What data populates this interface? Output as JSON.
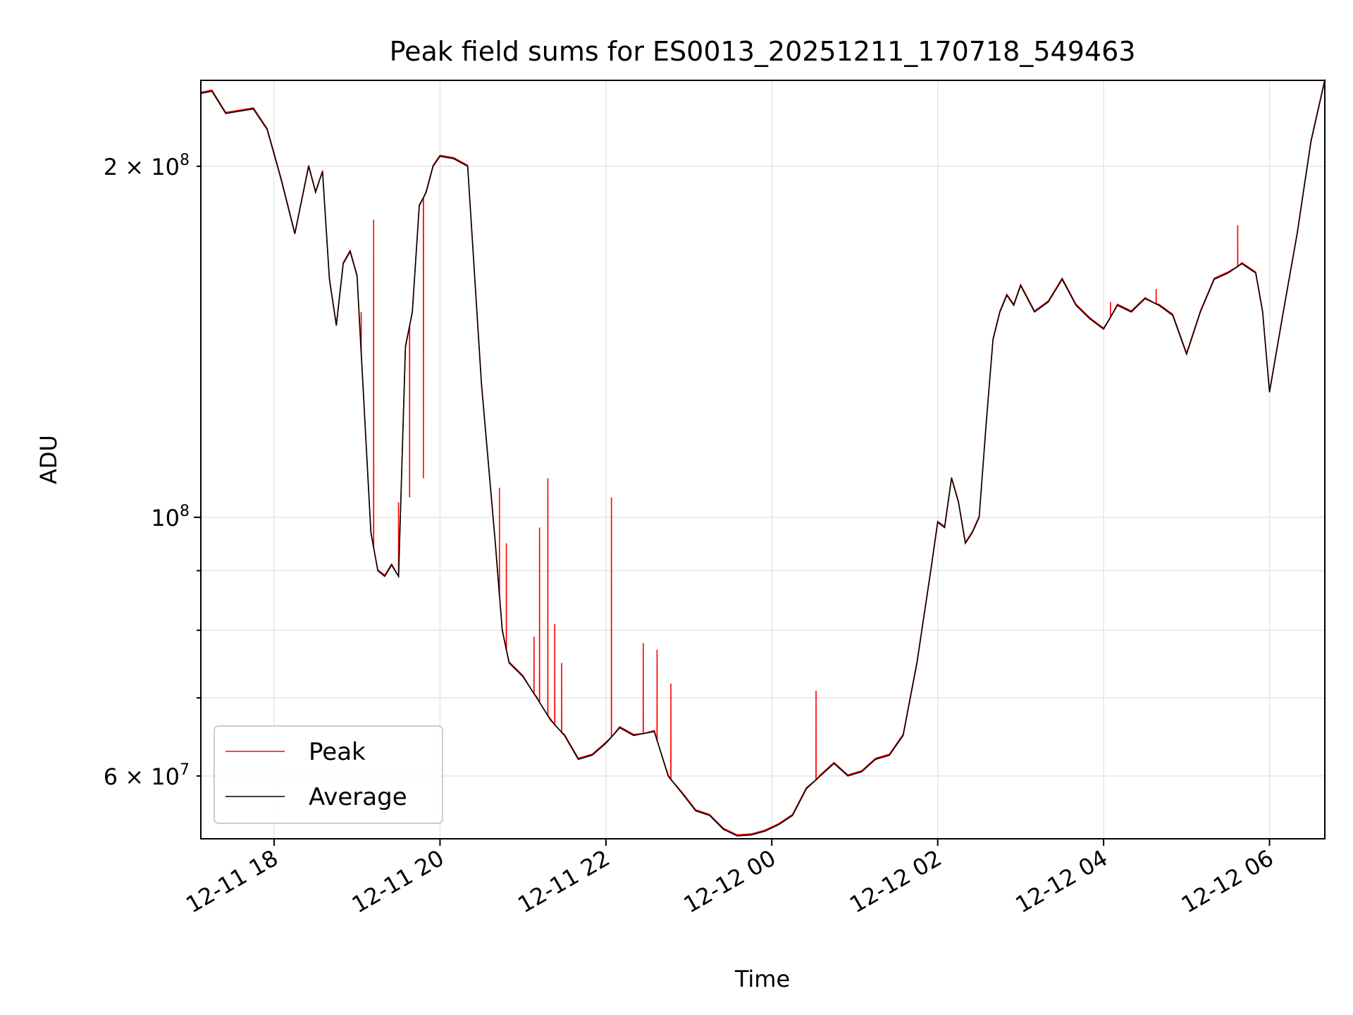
{
  "chart_data": {
    "type": "line",
    "title": "Peak field sums for ES0013_20251211_170718_549463",
    "xlabel": "Time",
    "ylabel": "ADU",
    "x_ticks": [
      "2025-12-11T18:00",
      "2025-12-11T20:00",
      "2025-12-11T22:00",
      "2025-12-12T00:00",
      "2025-12-12T02:00",
      "2025-12-12T04:00",
      "2025-12-12T06:00"
    ],
    "x_tick_labels": [
      "12-11 18",
      "12-11 20",
      "12-11 22",
      "12-12 00",
      "12-12 02",
      "12-12 04",
      "12-12 06"
    ],
    "xlim": [
      "2025-12-11T17:07",
      "2025-12-12T06:40"
    ],
    "yscale": "log",
    "ylim": [
      53000000,
      237000000
    ],
    "y_major_ticks": [
      {
        "value": 100000000,
        "label_base": "10",
        "label_exp": "8"
      }
    ],
    "y_minor_ticks": [
      {
        "value": 60000000,
        "label_base": "6 × 10",
        "label_exp": "7"
      },
      {
        "value": 70000000,
        "label_base": "",
        "label_exp": ""
      },
      {
        "value": 80000000,
        "label_base": "",
        "label_exp": ""
      },
      {
        "value": 90000000,
        "label_base": "",
        "label_exp": ""
      },
      {
        "value": 200000000,
        "label_base": "2 × 10",
        "label_exp": "8"
      }
    ],
    "grid": true,
    "legend_position": "lower-left",
    "colors": {
      "Peak": "#ff0000",
      "Average": "#000000"
    },
    "series": [
      {
        "name": "Average",
        "x": [
          "2025-12-11T17:07",
          "2025-12-11T17:15",
          "2025-12-11T17:25",
          "2025-12-11T17:35",
          "2025-12-11T17:45",
          "2025-12-11T17:55",
          "2025-12-11T18:05",
          "2025-12-11T18:15",
          "2025-12-11T18:25",
          "2025-12-11T18:30",
          "2025-12-11T18:35",
          "2025-12-11T18:40",
          "2025-12-11T18:45",
          "2025-12-11T18:50",
          "2025-12-11T18:55",
          "2025-12-11T19:00",
          "2025-12-11T19:05",
          "2025-12-11T19:10",
          "2025-12-11T19:15",
          "2025-12-11T19:20",
          "2025-12-11T19:25",
          "2025-12-11T19:30",
          "2025-12-11T19:35",
          "2025-12-11T19:40",
          "2025-12-11T19:45",
          "2025-12-11T19:50",
          "2025-12-11T19:55",
          "2025-12-11T20:00",
          "2025-12-11T20:10",
          "2025-12-11T20:20",
          "2025-12-11T20:30",
          "2025-12-11T20:40",
          "2025-12-11T20:45",
          "2025-12-11T20:50",
          "2025-12-11T20:55",
          "2025-12-11T21:00",
          "2025-12-11T21:10",
          "2025-12-11T21:20",
          "2025-12-11T21:30",
          "2025-12-11T21:40",
          "2025-12-11T21:50",
          "2025-12-11T22:00",
          "2025-12-11T22:10",
          "2025-12-11T22:20",
          "2025-12-11T22:35",
          "2025-12-11T22:45",
          "2025-12-11T22:55",
          "2025-12-11T23:05",
          "2025-12-11T23:15",
          "2025-12-11T23:25",
          "2025-12-11T23:35",
          "2025-12-11T23:45",
          "2025-12-11T23:55",
          "2025-12-12T00:05",
          "2025-12-12T00:15",
          "2025-12-12T00:25",
          "2025-12-12T00:35",
          "2025-12-12T00:45",
          "2025-12-12T00:55",
          "2025-12-12T01:05",
          "2025-12-12T01:15",
          "2025-12-12T01:25",
          "2025-12-12T01:35",
          "2025-12-12T01:45",
          "2025-12-12T01:55",
          "2025-12-12T02:00",
          "2025-12-12T02:05",
          "2025-12-12T02:10",
          "2025-12-12T02:15",
          "2025-12-12T02:20",
          "2025-12-12T02:25",
          "2025-12-12T02:30",
          "2025-12-12T02:35",
          "2025-12-12T02:40",
          "2025-12-12T02:45",
          "2025-12-12T02:50",
          "2025-12-12T02:55",
          "2025-12-12T03:00",
          "2025-12-12T03:10",
          "2025-12-12T03:20",
          "2025-12-12T03:30",
          "2025-12-12T03:40",
          "2025-12-12T03:50",
          "2025-12-12T04:00",
          "2025-12-12T04:10",
          "2025-12-12T04:20",
          "2025-12-12T04:30",
          "2025-12-12T04:40",
          "2025-12-12T04:50",
          "2025-12-12T05:00",
          "2025-12-12T05:10",
          "2025-12-12T05:20",
          "2025-12-12T05:30",
          "2025-12-12T05:40",
          "2025-12-12T05:50",
          "2025-12-12T05:55",
          "2025-12-12T06:00",
          "2025-12-12T06:10",
          "2025-12-12T06:20",
          "2025-12-12T06:30",
          "2025-12-12T06:40"
        ],
        "values": [
          231000000,
          232000000,
          222000000,
          223000000,
          224000000,
          215000000,
          195000000,
          175000000,
          200000000,
          190000000,
          198000000,
          160000000,
          146000000,
          165000000,
          169000000,
          161000000,
          125000000,
          97000000,
          90000000,
          89000000,
          91000000,
          89000000,
          140000000,
          150000000,
          185000000,
          190000000,
          200000000,
          204000000,
          203000000,
          200000000,
          130000000,
          95000000,
          80000000,
          75000000,
          74000000,
          73000000,
          70000000,
          67000000,
          65000000,
          62000000,
          62500000,
          64000000,
          66000000,
          65000000,
          65500000,
          60000000,
          58000000,
          56000000,
          55500000,
          54000000,
          53300000,
          53400000,
          53800000,
          54500000,
          55500000,
          58500000,
          60000000,
          61500000,
          60000000,
          60500000,
          62000000,
          62500000,
          65000000,
          75000000,
          90000000,
          99000000,
          98000000,
          108000000,
          103000000,
          95000000,
          97000000,
          100000000,
          120000000,
          142000000,
          150000000,
          155000000,
          152000000,
          158000000,
          150000000,
          153000000,
          160000000,
          152000000,
          148000000,
          145000000,
          152000000,
          150000000,
          154000000,
          152000000,
          149000000,
          138000000,
          150000000,
          160000000,
          162000000,
          165000000,
          162000000,
          150000000,
          128000000,
          150000000,
          175000000,
          210000000,
          237000000
        ]
      },
      {
        "name": "Peak",
        "x": [
          "2025-12-11T18:35",
          "2025-12-11T19:03",
          "2025-12-11T19:12",
          "2025-12-11T19:30",
          "2025-12-11T19:38",
          "2025-12-11T19:48",
          "2025-12-11T20:43",
          "2025-12-11T20:48",
          "2025-12-11T21:08",
          "2025-12-11T21:12",
          "2025-12-11T21:18",
          "2025-12-11T21:23",
          "2025-12-11T21:28",
          "2025-12-11T22:04",
          "2025-12-11T22:27",
          "2025-12-11T22:37",
          "2025-12-11T22:47",
          "2025-12-12T00:32",
          "2025-12-12T04:05",
          "2025-12-12T04:38",
          "2025-12-12T05:37"
        ],
        "values": [
          198000000,
          150000000,
          180000000,
          103000000,
          104000000,
          108000000,
          106000000,
          95000000,
          79000000,
          98000000,
          108000000,
          81000000,
          75000000,
          104000000,
          78000000,
          77000000,
          72000000,
          71000000,
          153000000,
          157000000,
          178000000
        ]
      }
    ]
  }
}
